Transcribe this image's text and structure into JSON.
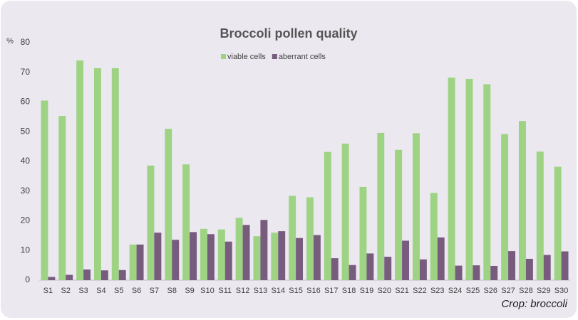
{
  "chart_data": {
    "type": "bar",
    "title": "Broccoli pollen quality",
    "y_label": "%",
    "annotation": "Crop: broccoli",
    "categories": [
      "S1",
      "S2",
      "S3",
      "S4",
      "S5",
      "S6",
      "S7",
      "S8",
      "S9",
      "S10",
      "S11",
      "S12",
      "S13",
      "S14",
      "S15",
      "S16",
      "S17",
      "S18",
      "S19",
      "S20",
      "S21",
      "S22",
      "S23",
      "S24",
      "S25",
      "S26",
      "S27",
      "S28",
      "S29",
      "S30"
    ],
    "series": [
      {
        "name": "viable cells",
        "color": "#9ed384",
        "values": [
          60.5,
          55.3,
          74,
          71.4,
          71.4,
          12,
          38.6,
          51,
          39,
          17.3,
          17.1,
          21,
          14.8,
          16,
          28.4,
          27.9,
          43.2,
          46,
          31.4,
          49.6,
          43.9,
          49.5,
          29.4,
          68.2,
          67.8,
          66,
          49.2,
          53.6,
          43.3,
          38.2
        ]
      },
      {
        "name": "aberrant cells",
        "color": "#775c7e",
        "values": [
          1.1,
          1.8,
          3.6,
          3.3,
          3.4,
          12,
          16,
          13.6,
          16.2,
          15.5,
          13,
          18.6,
          20.3,
          16.5,
          14.2,
          15.2,
          7.4,
          5.1,
          9,
          7.9,
          13.3,
          7,
          14.4,
          4.9,
          5,
          4.8,
          9.8,
          7.2,
          8.5,
          9.7
        ]
      }
    ],
    "ylim": [
      0,
      80
    ],
    "yticks": [
      0,
      10,
      20,
      30,
      40,
      50,
      60,
      70,
      80
    ],
    "grid": false,
    "legend": "top"
  }
}
